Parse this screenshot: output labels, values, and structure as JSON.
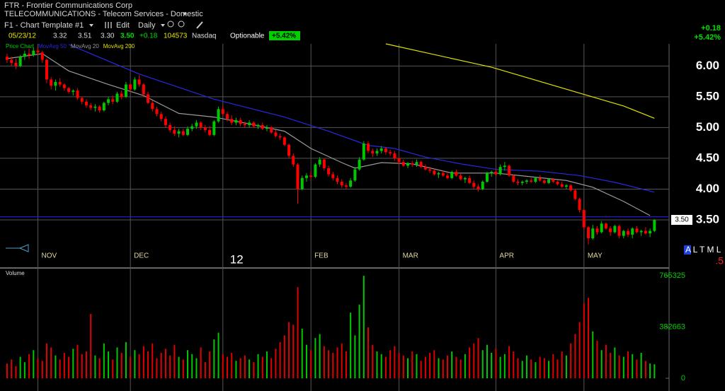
{
  "header": {
    "title": "FTR - Frontier Communications Corp",
    "industry": "TELECOMMUNICATIONS - Telecom Services - Domestic",
    "template": "F1 - Chart Template #1",
    "edit": "Edit",
    "period": "Daily",
    "quote": {
      "date": "05/23/12",
      "open": "3.32",
      "high": "3.51",
      "low": "3.30",
      "close": "3.50",
      "change": "+0.18",
      "volume": "104573",
      "exchange": "Nasdaq"
    },
    "optionable": "Optionable",
    "change_pct": "+5.42%",
    "right_change": "+0.18",
    "right_change_pct": "+5.42%",
    "side_letters": "A L T M L",
    "side_value": ".5"
  },
  "chart_data": [
    {
      "type": "candlestick",
      "name": "Price Chart",
      "name_color": "#00d000",
      "up_color": "#00c800",
      "down_color": "#ff0000",
      "grid": true,
      "ylim": [
        2.73,
        6.36
      ],
      "yticks": [
        {
          "value": 6,
          "label": "6.00"
        },
        {
          "value": 5.5,
          "label": "5.50"
        },
        {
          "value": 5,
          "label": "5.00"
        },
        {
          "value": 4.5,
          "label": "4.50"
        },
        {
          "value": 4,
          "label": "4.00"
        },
        {
          "value": 3.5,
          "label": "3.50"
        }
      ],
      "xticks": [
        {
          "value": 7,
          "label": "NOV"
        },
        {
          "value": 28,
          "label": "DEC"
        },
        {
          "value": 49,
          "label": "12"
        },
        {
          "value": 69,
          "label": "FEB"
        },
        {
          "value": 89,
          "label": "MAR"
        },
        {
          "value": 111,
          "label": "APR"
        },
        {
          "value": 131,
          "label": "MAY"
        }
      ],
      "hlines": [
        {
          "value": 3.55,
          "color": "#2020ff"
        }
      ],
      "price_tag": "3.50",
      "ohlc": [
        [
          6.15,
          6.2,
          6.05,
          6.1
        ],
        [
          6.1,
          6.15,
          6.0,
          6.05
        ],
        [
          6.05,
          6.12,
          5.95,
          6.0
        ],
        [
          6.0,
          6.18,
          5.98,
          6.15
        ],
        [
          6.15,
          6.25,
          6.1,
          6.2
        ],
        [
          6.2,
          6.28,
          6.12,
          6.18
        ],
        [
          6.18,
          6.3,
          6.15,
          6.25
        ],
        [
          6.25,
          6.32,
          6.18,
          6.22
        ],
        [
          6.22,
          6.25,
          6.05,
          6.1
        ],
        [
          6.1,
          6.12,
          5.72,
          5.78
        ],
        [
          5.78,
          5.82,
          5.62,
          5.68
        ],
        [
          5.68,
          5.78,
          5.6,
          5.74
        ],
        [
          5.74,
          5.8,
          5.66,
          5.7
        ],
        [
          5.7,
          5.72,
          5.6,
          5.64
        ],
        [
          5.64,
          5.66,
          5.55,
          5.58
        ],
        [
          5.58,
          5.62,
          5.52,
          5.6
        ],
        [
          5.6,
          5.64,
          5.45,
          5.48
        ],
        [
          5.48,
          5.5,
          5.38,
          5.42
        ],
        [
          5.42,
          5.46,
          5.32,
          5.36
        ],
        [
          5.36,
          5.4,
          5.28,
          5.32
        ],
        [
          5.32,
          5.38,
          5.26,
          5.34
        ],
        [
          5.34,
          5.36,
          5.24,
          5.28
        ],
        [
          5.28,
          5.42,
          5.26,
          5.4
        ],
        [
          5.4,
          5.5,
          5.36,
          5.46
        ],
        [
          5.46,
          5.52,
          5.38,
          5.42
        ],
        [
          5.42,
          5.58,
          5.4,
          5.55
        ],
        [
          5.55,
          5.6,
          5.46,
          5.5
        ],
        [
          5.5,
          5.74,
          5.48,
          5.7
        ],
        [
          5.7,
          5.72,
          5.58,
          5.62
        ],
        [
          5.62,
          5.82,
          5.6,
          5.78
        ],
        [
          5.78,
          5.85,
          5.66,
          5.7
        ],
        [
          5.7,
          5.72,
          5.5,
          5.54
        ],
        [
          5.54,
          5.58,
          5.38,
          5.4
        ],
        [
          5.4,
          5.44,
          5.26,
          5.3
        ],
        [
          5.3,
          5.34,
          5.18,
          5.22
        ],
        [
          5.22,
          5.26,
          5.1,
          5.14
        ],
        [
          5.14,
          5.18,
          5.0,
          5.04
        ],
        [
          5.04,
          5.08,
          4.92,
          4.96
        ],
        [
          4.96,
          5.02,
          4.86,
          4.9
        ],
        [
          4.9,
          4.98,
          4.84,
          4.94
        ],
        [
          4.94,
          4.98,
          4.86,
          4.88
        ],
        [
          4.88,
          5.02,
          4.86,
          4.98
        ],
        [
          4.98,
          5.06,
          4.94,
          5.02
        ],
        [
          5.02,
          5.12,
          4.98,
          5.08
        ],
        [
          5.08,
          5.1,
          4.96,
          5.0
        ],
        [
          5.0,
          5.04,
          4.92,
          4.96
        ],
        [
          4.96,
          5.02,
          4.86,
          4.88
        ],
        [
          4.88,
          5.12,
          4.86,
          5.1
        ],
        [
          5.1,
          5.34,
          5.08,
          5.3
        ],
        [
          5.3,
          5.36,
          5.18,
          5.22
        ],
        [
          5.22,
          5.26,
          5.1,
          5.14
        ],
        [
          5.14,
          5.2,
          5.04,
          5.08
        ],
        [
          5.08,
          5.16,
          5.04,
          5.12
        ],
        [
          5.12,
          5.16,
          5.02,
          5.06
        ],
        [
          5.06,
          5.1,
          5.0,
          5.04
        ],
        [
          5.04,
          5.12,
          5.0,
          5.08
        ],
        [
          5.08,
          5.1,
          5.0,
          5.02
        ],
        [
          5.02,
          5.06,
          4.98,
          5.04
        ],
        [
          5.04,
          5.08,
          4.96,
          4.98
        ],
        [
          4.98,
          5.04,
          4.94,
          5.0
        ],
        [
          5.0,
          5.02,
          4.9,
          4.92
        ],
        [
          4.92,
          4.96,
          4.84,
          4.86
        ],
        [
          4.86,
          4.9,
          4.8,
          4.84
        ],
        [
          4.84,
          4.86,
          4.7,
          4.72
        ],
        [
          4.72,
          4.74,
          4.5,
          4.54
        ],
        [
          4.54,
          4.58,
          4.36,
          4.4
        ],
        [
          4.4,
          4.42,
          3.76,
          4.0
        ],
        [
          4.0,
          4.22,
          3.98,
          4.18
        ],
        [
          4.18,
          4.26,
          4.12,
          4.22
        ],
        [
          4.22,
          4.3,
          4.16,
          4.2
        ],
        [
          4.2,
          4.42,
          4.18,
          4.4
        ],
        [
          4.4,
          4.52,
          4.36,
          4.48
        ],
        [
          4.48,
          4.5,
          4.3,
          4.34
        ],
        [
          4.34,
          4.38,
          4.2,
          4.24
        ],
        [
          4.24,
          4.28,
          4.14,
          4.18
        ],
        [
          4.18,
          4.22,
          4.08,
          4.12
        ],
        [
          4.12,
          4.16,
          4.02,
          4.06
        ],
        [
          4.06,
          4.1,
          4.0,
          4.04
        ],
        [
          4.04,
          4.18,
          4.02,
          4.14
        ],
        [
          4.14,
          4.36,
          4.12,
          4.32
        ],
        [
          4.32,
          4.52,
          4.3,
          4.48
        ],
        [
          4.48,
          4.78,
          4.46,
          4.74
        ],
        [
          4.74,
          4.78,
          4.58,
          4.62
        ],
        [
          4.62,
          4.66,
          4.52,
          4.58
        ],
        [
          4.58,
          4.66,
          4.54,
          4.62
        ],
        [
          4.62,
          4.7,
          4.58,
          4.66
        ],
        [
          4.66,
          4.68,
          4.56,
          4.6
        ],
        [
          4.6,
          4.64,
          4.54,
          4.58
        ],
        [
          4.58,
          4.62,
          4.46,
          4.5
        ],
        [
          4.5,
          4.54,
          4.4,
          4.44
        ],
        [
          4.44,
          4.48,
          4.36,
          4.38
        ],
        [
          4.38,
          4.44,
          4.34,
          4.42
        ],
        [
          4.42,
          4.46,
          4.36,
          4.4
        ],
        [
          4.4,
          4.48,
          4.36,
          4.44
        ],
        [
          4.44,
          4.46,
          4.34,
          4.36
        ],
        [
          4.36,
          4.4,
          4.3,
          4.32
        ],
        [
          4.32,
          4.36,
          4.26,
          4.3
        ],
        [
          4.3,
          4.34,
          4.22,
          4.24
        ],
        [
          4.24,
          4.28,
          4.18,
          4.26
        ],
        [
          4.26,
          4.3,
          4.2,
          4.22
        ],
        [
          4.22,
          4.26,
          4.16,
          4.18
        ],
        [
          4.18,
          4.3,
          4.16,
          4.28
        ],
        [
          4.28,
          4.32,
          4.2,
          4.22
        ],
        [
          4.22,
          4.26,
          4.14,
          4.16
        ],
        [
          4.16,
          4.2,
          4.1,
          4.18
        ],
        [
          4.18,
          4.22,
          4.08,
          4.1
        ],
        [
          4.1,
          4.14,
          4.0,
          4.04
        ],
        [
          4.04,
          4.08,
          3.96,
          4.0
        ],
        [
          4.0,
          4.14,
          3.98,
          4.12
        ],
        [
          4.12,
          4.28,
          4.1,
          4.26
        ],
        [
          4.26,
          4.3,
          4.2,
          4.28
        ],
        [
          4.28,
          4.34,
          4.22,
          4.24
        ],
        [
          4.24,
          4.4,
          4.22,
          4.36
        ],
        [
          4.36,
          4.44,
          4.3,
          4.38
        ],
        [
          4.38,
          4.4,
          4.2,
          4.22
        ],
        [
          4.22,
          4.24,
          4.1,
          4.12
        ],
        [
          4.12,
          4.16,
          4.06,
          4.1
        ],
        [
          4.1,
          4.14,
          4.06,
          4.12
        ],
        [
          4.12,
          4.16,
          4.08,
          4.14
        ],
        [
          4.14,
          4.18,
          4.1,
          4.12
        ],
        [
          4.12,
          4.2,
          4.1,
          4.18
        ],
        [
          4.18,
          4.22,
          4.12,
          4.14
        ],
        [
          4.14,
          4.16,
          4.08,
          4.1
        ],
        [
          4.1,
          4.18,
          4.08,
          4.16
        ],
        [
          4.16,
          4.18,
          4.1,
          4.12
        ],
        [
          4.12,
          4.14,
          4.06,
          4.08
        ],
        [
          4.08,
          4.12,
          4.02,
          4.04
        ],
        [
          4.04,
          4.08,
          4.0,
          4.06
        ],
        [
          4.06,
          4.08,
          3.96,
          3.98
        ],
        [
          3.98,
          4.0,
          3.82,
          3.84
        ],
        [
          3.84,
          3.86,
          3.62,
          3.66
        ],
        [
          3.66,
          3.68,
          3.34,
          3.38
        ],
        [
          3.38,
          3.4,
          3.1,
          3.2
        ],
        [
          3.2,
          3.42,
          3.18,
          3.36
        ],
        [
          3.36,
          3.4,
          3.26,
          3.3
        ],
        [
          3.3,
          3.48,
          3.28,
          3.44
        ],
        [
          3.44,
          3.46,
          3.34,
          3.36
        ],
        [
          3.36,
          3.4,
          3.24,
          3.3
        ],
        [
          3.3,
          3.42,
          3.28,
          3.4
        ],
        [
          3.4,
          3.42,
          3.2,
          3.24
        ],
        [
          3.24,
          3.34,
          3.2,
          3.32
        ],
        [
          3.32,
          3.36,
          3.22,
          3.26
        ],
        [
          3.26,
          3.38,
          3.2,
          3.36
        ],
        [
          3.36,
          3.4,
          3.28,
          3.3
        ],
        [
          3.3,
          3.34,
          3.24,
          3.32
        ],
        [
          3.32,
          3.38,
          3.26,
          3.28
        ],
        [
          3.28,
          3.36,
          3.22,
          3.32
        ],
        [
          3.32,
          3.51,
          3.3,
          3.5
        ]
      ],
      "overlays": [
        {
          "name": "MovAvg 50",
          "color": "#2828e0",
          "x": [
            14,
            30,
            47,
            63,
            73,
            82,
            88,
            95,
            103,
            111,
            121,
            130,
            138,
            147
          ],
          "values": [
            6.35,
            5.87,
            5.46,
            5.17,
            4.94,
            4.71,
            4.66,
            4.52,
            4.41,
            4.32,
            4.29,
            4.22,
            4.11,
            3.95
          ]
        },
        {
          "name": "MovAvg 20",
          "color": "#9a9a9a",
          "x": [
            0,
            8,
            14,
            23,
            31,
            39,
            47,
            55,
            63,
            69,
            76,
            79,
            85,
            92,
            101,
            111,
            119,
            127,
            133,
            140,
            146
          ],
          "values": [
            6.12,
            6.2,
            5.92,
            5.7,
            5.52,
            5.23,
            5.17,
            5.06,
            4.94,
            4.66,
            4.43,
            4.34,
            4.43,
            4.41,
            4.26,
            4.26,
            4.2,
            4.14,
            4.03,
            3.8,
            3.57
          ]
        },
        {
          "name": "MovAvg 200",
          "color": "#e0e000",
          "x": [
            86,
            110,
            130,
            140,
            147
          ],
          "values": [
            6.36,
            5.98,
            5.56,
            5.35,
            5.15
          ]
        }
      ]
    },
    {
      "type": "bar",
      "title": "Volume",
      "up_color": "#00c800",
      "down_color": "#e00000",
      "label_color": "#00d000",
      "ylim": [
        0,
        818000
      ],
      "yticks": [
        765325,
        382663,
        0
      ],
      "values": [
        110000,
        140000,
        90000,
        160000,
        120000,
        180000,
        210000,
        150000,
        130000,
        260000,
        230000,
        170000,
        140000,
        190000,
        160000,
        220000,
        250000,
        180000,
        200000,
        480000,
        170000,
        150000,
        260000,
        200000,
        140000,
        230000,
        190000,
        270000,
        160000,
        210000,
        180000,
        240000,
        200000,
        260000,
        150000,
        190000,
        220000,
        170000,
        250000,
        160000,
        140000,
        210000,
        180000,
        150000,
        230000,
        120000,
        200000,
        290000,
        340000,
        180000,
        160000,
        190000,
        130000,
        150000,
        170000,
        140000,
        120000,
        180000,
        160000,
        200000,
        150000,
        220000,
        270000,
        320000,
        420000,
        400000,
        680000,
        370000,
        250000,
        210000,
        300000,
        330000,
        240000,
        210000,
        190000,
        230000,
        260000,
        200000,
        490000,
        320000,
        550000,
        765000,
        380000,
        250000,
        200000,
        180000,
        160000,
        210000,
        240000,
        190000,
        170000,
        150000,
        200000,
        180000,
        130000,
        160000,
        190000,
        210000,
        150000,
        140000,
        170000,
        200000,
        160000,
        140000,
        180000,
        230000,
        260000,
        300000,
        210000,
        250000,
        190000,
        220000,
        160000,
        180000,
        240000,
        200000,
        150000,
        130000,
        170000,
        140000,
        120000,
        160000,
        150000,
        130000,
        180000,
        140000,
        200000,
        170000,
        260000,
        330000,
        420000,
        560000,
        600000,
        350000,
        280000,
        210000,
        250000,
        190000,
        230000,
        170000,
        160000,
        200000,
        180000,
        140000,
        190000,
        130000,
        110000,
        104573
      ]
    }
  ]
}
